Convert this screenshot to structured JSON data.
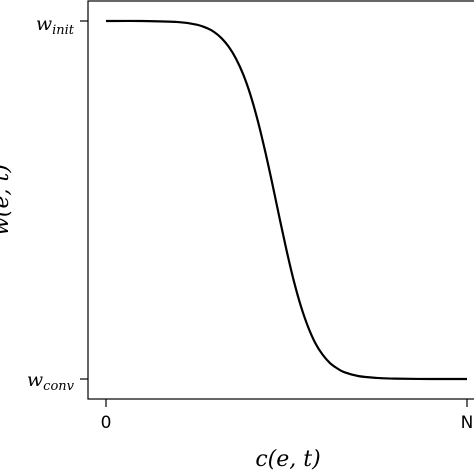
{
  "chart_data": {
    "type": "line",
    "title": "",
    "xlabel": "c(e, t)",
    "ylabel": "w(e, t)",
    "x_ticks": [
      {
        "value": 0,
        "label": "0"
      },
      {
        "value": 1,
        "label": "N"
      }
    ],
    "y_ticks": [
      {
        "value": 1,
        "base": "w",
        "sub": "init"
      },
      {
        "value": 0,
        "base": "w",
        "sub": "conv"
      }
    ],
    "xlim": [
      0,
      1
    ],
    "ylim": [
      0,
      1
    ],
    "grid": false,
    "series": [
      {
        "x": [
          0.0,
          0.1,
          0.2,
          0.25,
          0.28,
          0.3,
          0.32,
          0.34,
          0.36,
          0.38,
          0.4,
          0.42,
          0.44,
          0.46,
          0.48,
          0.5,
          0.52,
          0.54,
          0.56,
          0.58,
          0.6,
          0.62,
          0.64,
          0.66,
          0.7,
          0.75,
          0.8,
          0.9,
          1.0
        ],
        "y": [
          1.0,
          1.0,
          0.997,
          0.99,
          0.98,
          0.969,
          0.952,
          0.928,
          0.895,
          0.851,
          0.794,
          0.723,
          0.64,
          0.549,
          0.453,
          0.36,
          0.275,
          0.203,
          0.145,
          0.1,
          0.068,
          0.045,
          0.03,
          0.019,
          0.008,
          0.003,
          0.001,
          0.0,
          0.0
        ],
        "color": "#000000"
      }
    ]
  }
}
